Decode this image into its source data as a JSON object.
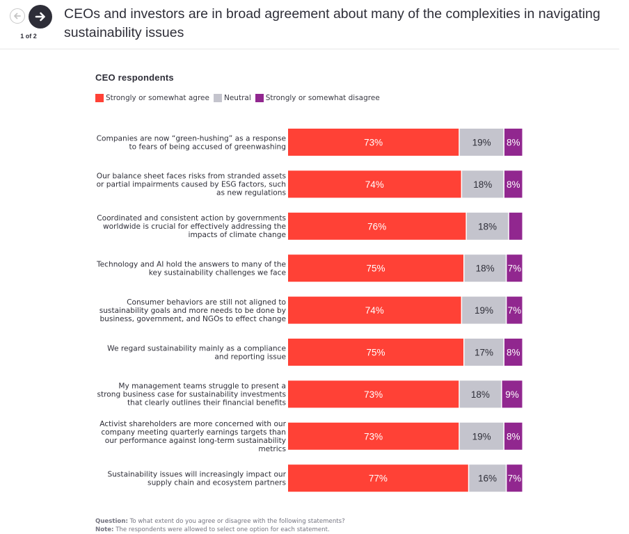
{
  "header": {
    "title": "CEOs and investors are in broad agreement about many of the complexities in navigating sustainability issues",
    "page_indicator": "1 of 2",
    "prev_icon": "arrow-left-icon",
    "next_icon": "arrow-right-icon"
  },
  "colors": {
    "agree": "#ff4136",
    "neutral": "#c4c4cd",
    "disagree": "#91278f"
  },
  "chart_data": {
    "type": "bar",
    "orientation": "horizontal",
    "stacked": true,
    "normalized": true,
    "title": "CEO respondents",
    "legend_position": "top-left",
    "legend": [
      "Strongly or somewhat agree",
      "Neutral",
      "Strongly or somewhat disagree"
    ],
    "categories": [
      "Companies are now “green-hushing” as a response to fears of being accused of greenwashing",
      "Our balance sheet faces risks from stranded assets or partial impairments caused by ESG factors, such as new regulations",
      "Coordinated and consistent action by governments worldwide is crucial for effectively addressing the impacts of climate change",
      "Technology and AI hold the answers to many of the key sustainability challenges we face",
      "Consumer behaviors are still not aligned to sustainability goals and more needs to be done by business, government, and NGOs to effect change",
      "We regard sustainability mainly as a compliance and reporting issue",
      "My management teams struggle to present a strong business case for sustainability investments that clearly outlines their financial benefits",
      "Activist shareholders are more concerned with our company meeting quarterly earnings targets than our performance against long-term sustainability metrics",
      "Sustainability issues will increasingly impact our supply chain and ecosystem partners"
    ],
    "category_lines": [
      [
        "Companies are now “green-hushing” as a response",
        "to fears of being accused of greenwashing"
      ],
      [
        "Our balance sheet faces risks from stranded assets",
        "or partial impairments caused by ESG factors, such",
        "as new regulations"
      ],
      [
        "Coordinated and consistent action by governments",
        "worldwide is crucial for effectively addressing the",
        "impacts of climate change"
      ],
      [
        "Technology and AI hold the answers to many of the",
        "key sustainability challenges we face"
      ],
      [
        "Consumer behaviors are still not aligned to",
        "sustainability goals and more needs to be done by",
        "business, government, and NGOs to effect change"
      ],
      [
        "We regard sustainability mainly as a compliance",
        "and reporting issue"
      ],
      [
        "My management teams struggle to present a",
        "strong business case for sustainability investments",
        "that clearly outlines their financial benefits"
      ],
      [
        "Activist shareholders are more concerned with our",
        "company meeting quarterly earnings targets than",
        "our performance against long-term sustainability",
        "metrics"
      ],
      [
        "Sustainability issues will increasingly impact our",
        "supply chain and ecosystem partners"
      ]
    ],
    "series": [
      {
        "name": "Strongly or somewhat agree",
        "values": [
          73,
          74,
          76,
          75,
          74,
          75,
          73,
          73,
          77
        ],
        "labels": [
          "73%",
          "74%",
          "76%",
          "75%",
          "74%",
          "75%",
          "73%",
          "73%",
          "77%"
        ]
      },
      {
        "name": "Neutral",
        "values": [
          19,
          18,
          18,
          18,
          19,
          17,
          18,
          19,
          16
        ],
        "labels": [
          "19%",
          "18%",
          "18%",
          "18%",
          "19%",
          "17%",
          "18%",
          "19%",
          "16%"
        ]
      },
      {
        "name": "Strongly or somewhat disagree",
        "values": [
          8,
          8,
          6,
          7,
          7,
          8,
          9,
          8,
          7
        ],
        "labels": [
          "8%",
          "8%",
          "",
          "7%",
          "7%",
          "8%",
          "9%",
          "8%",
          "7%"
        ]
      }
    ]
  },
  "footnote": {
    "question_label": "Question:",
    "question_text": "To what extent do you agree or disagree with the following statements?",
    "note_label": "Note:",
    "note_text": "The respondents were allowed to select one option for each statement."
  }
}
